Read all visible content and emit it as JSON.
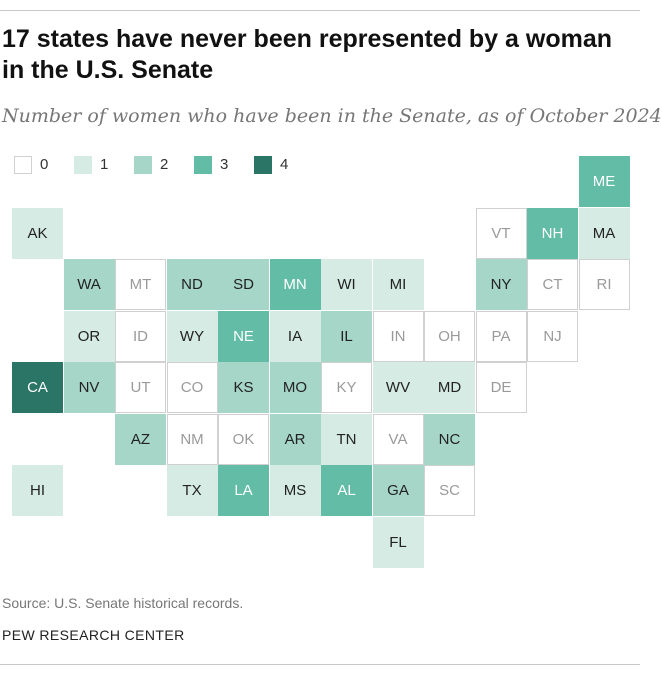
{
  "header": {
    "title": "17 states have never been represented by a woman in the U.S. Senate",
    "subtitle": "Number of women who have been in the Senate, as of October 2024"
  },
  "legend": [
    {
      "label": "0",
      "value": 0
    },
    {
      "label": "1",
      "value": 1
    },
    {
      "label": "2",
      "value": 2
    },
    {
      "label": "3",
      "value": 3
    },
    {
      "label": "4",
      "value": 4
    }
  ],
  "colors": {
    "0": "#ffffff",
    "1": "#d5ebe4",
    "2": "#a6d6c8",
    "3": "#62bca6",
    "4": "#2a7566",
    "border_empty": "#d0d0d0",
    "text_dark": "#222222",
    "text_light": "#ffffff",
    "text_zero": "#9a9a9a"
  },
  "states": [
    {
      "abbr": "ME",
      "value": 3
    },
    {
      "abbr": "AK",
      "value": 1
    },
    {
      "abbr": "VT",
      "value": 0
    },
    {
      "abbr": "NH",
      "value": 3
    },
    {
      "abbr": "MA",
      "value": 1
    },
    {
      "abbr": "WA",
      "value": 2
    },
    {
      "abbr": "MT",
      "value": 0
    },
    {
      "abbr": "ND",
      "value": 2
    },
    {
      "abbr": "SD",
      "value": 2
    },
    {
      "abbr": "MN",
      "value": 3
    },
    {
      "abbr": "WI",
      "value": 1
    },
    {
      "abbr": "MI",
      "value": 1
    },
    {
      "abbr": "NY",
      "value": 2
    },
    {
      "abbr": "CT",
      "value": 0
    },
    {
      "abbr": "RI",
      "value": 0
    },
    {
      "abbr": "OR",
      "value": 1
    },
    {
      "abbr": "ID",
      "value": 0
    },
    {
      "abbr": "WY",
      "value": 1
    },
    {
      "abbr": "NE",
      "value": 3
    },
    {
      "abbr": "IA",
      "value": 1
    },
    {
      "abbr": "IL",
      "value": 2
    },
    {
      "abbr": "IN",
      "value": 0
    },
    {
      "abbr": "OH",
      "value": 0
    },
    {
      "abbr": "PA",
      "value": 0
    },
    {
      "abbr": "NJ",
      "value": 0
    },
    {
      "abbr": "CA",
      "value": 4
    },
    {
      "abbr": "NV",
      "value": 2
    },
    {
      "abbr": "UT",
      "value": 0
    },
    {
      "abbr": "CO",
      "value": 0
    },
    {
      "abbr": "KS",
      "value": 2
    },
    {
      "abbr": "MO",
      "value": 2
    },
    {
      "abbr": "KY",
      "value": 0
    },
    {
      "abbr": "WV",
      "value": 1
    },
    {
      "abbr": "MD",
      "value": 1
    },
    {
      "abbr": "DE",
      "value": 0
    },
    {
      "abbr": "AZ",
      "value": 2
    },
    {
      "abbr": "NM",
      "value": 0
    },
    {
      "abbr": "OK",
      "value": 0
    },
    {
      "abbr": "AR",
      "value": 2
    },
    {
      "abbr": "TN",
      "value": 1
    },
    {
      "abbr": "VA",
      "value": 0
    },
    {
      "abbr": "NC",
      "value": 2
    },
    {
      "abbr": "HI",
      "value": 1
    },
    {
      "abbr": "TX",
      "value": 1
    },
    {
      "abbr": "LA",
      "value": 3
    },
    {
      "abbr": "MS",
      "value": 1
    },
    {
      "abbr": "AL",
      "value": 3
    },
    {
      "abbr": "GA",
      "value": 2
    },
    {
      "abbr": "SC",
      "value": 0
    },
    {
      "abbr": "FL",
      "value": 1
    }
  ],
  "footer": {
    "source": "Source: U.S. Senate historical records.",
    "brand": "PEW RESEARCH CENTER"
  }
}
